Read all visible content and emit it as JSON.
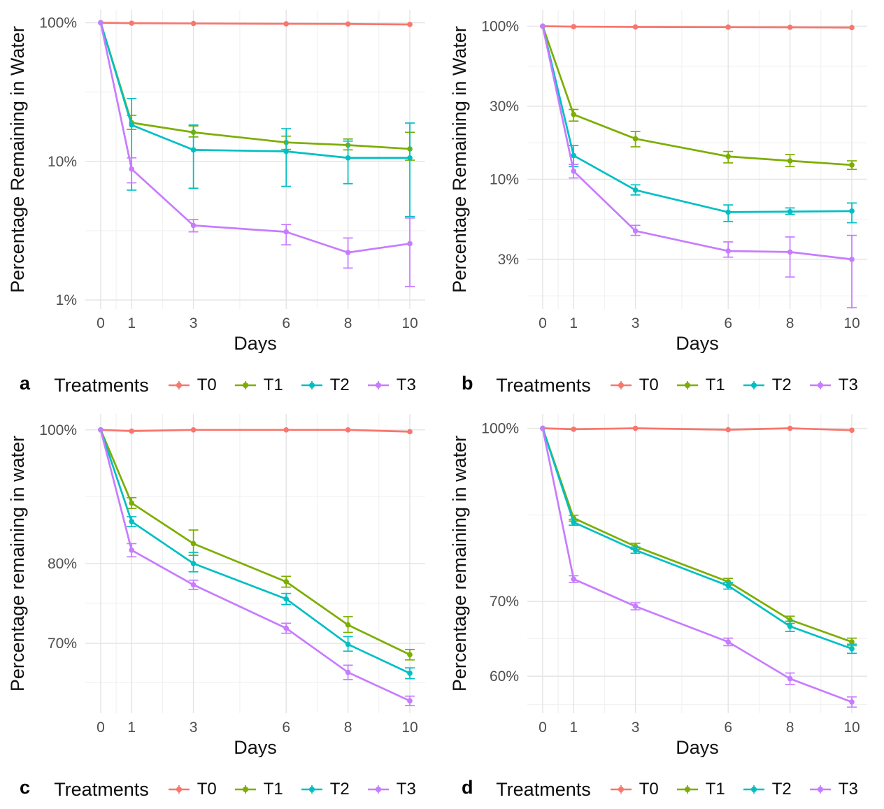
{
  "page": {
    "background": "#ffffff"
  },
  "colors": {
    "T0": "#F8766D",
    "T1": "#7CAE00",
    "T2": "#00BFC4",
    "T3": "#C77CFF",
    "grid_major": "#e4e4e4",
    "grid_minor": "#f1f1f1",
    "tick_text": "#4d4d4d",
    "title_text": "#121212"
  },
  "panels_meta": {
    "legend_title": "Treatments",
    "legend_items": [
      "T0",
      "T1",
      "T2",
      "T3"
    ],
    "x_axis_label": "Days",
    "x_tick_labels": [
      "0",
      "1",
      "3",
      "6",
      "8",
      "10"
    ],
    "x_tick_values": [
      0,
      1,
      3,
      6,
      8,
      10
    ],
    "x_minor_values": [
      0.5,
      2,
      4.5,
      7,
      9
    ]
  },
  "chart_data": [
    {
      "id": "a",
      "type": "line",
      "ylabel": "Percentage Remaining in Water",
      "xlabel": "Days",
      "x": [
        0,
        1,
        3,
        6,
        8,
        10
      ],
      "y_scale": "log10",
      "y_domain": [
        0.86,
        124
      ],
      "y_major_ticks": [
        {
          "value": 100,
          "label": "100%"
        },
        {
          "value": 10,
          "label": "10%"
        },
        {
          "value": 1,
          "label": "1%"
        }
      ],
      "y_minor_ticks": [
        31.62,
        3.162
      ],
      "grid": true,
      "legend_position": "bottom",
      "series": [
        {
          "name": "T0",
          "color_key": "T0",
          "values": [
            100,
            99.3,
            98.8,
            98.2,
            98.0,
            97.2
          ],
          "err_lo": [
            null,
            null,
            null,
            null,
            null,
            null
          ],
          "err_hi": [
            null,
            null,
            null,
            null,
            null,
            null
          ]
        },
        {
          "name": "T1",
          "color_key": "T1",
          "values": [
            100,
            19.0,
            16.2,
            13.7,
            13.1,
            12.3
          ],
          "err_lo": [
            null,
            17.0,
            15.0,
            12.2,
            12.1,
            10.2
          ],
          "err_hi": [
            null,
            21.5,
            18.0,
            15.2,
            14.5,
            16.2
          ]
        },
        {
          "name": "T2",
          "color_key": "T2",
          "values": [
            100,
            18.3,
            12.1,
            11.8,
            10.6,
            10.6
          ],
          "err_lo": [
            null,
            6.2,
            6.4,
            6.6,
            6.9,
            4.0
          ],
          "err_hi": [
            null,
            28.4,
            18.3,
            17.2,
            14.0,
            18.9
          ]
        },
        {
          "name": "T3",
          "color_key": "T3",
          "values": [
            100,
            8.8,
            3.45,
            3.1,
            2.2,
            2.55
          ],
          "err_lo": [
            null,
            7.0,
            3.1,
            2.5,
            1.7,
            1.25
          ],
          "err_hi": [
            null,
            10.6,
            3.8,
            3.5,
            2.8,
            3.9
          ]
        }
      ]
    },
    {
      "id": "b",
      "type": "line",
      "ylabel": "Percentage Remaining in Water",
      "xlabel": "Days",
      "x": [
        0,
        1,
        3,
        6,
        8,
        10
      ],
      "y_scale": "log10",
      "y_domain": [
        1.42,
        128
      ],
      "y_major_ticks": [
        {
          "value": 100,
          "label": "100%"
        },
        {
          "value": 30,
          "label": "30%"
        },
        {
          "value": 10,
          "label": "10%"
        },
        {
          "value": 3,
          "label": "3%"
        }
      ],
      "y_minor_ticks": [
        54.77,
        17.32,
        5.477,
        1.732
      ],
      "grid": true,
      "legend_position": "bottom",
      "series": [
        {
          "name": "T0",
          "color_key": "T0",
          "values": [
            100,
            99.4,
            98.9,
            98.6,
            98.4,
            98.0
          ],
          "err_lo": [
            null,
            null,
            null,
            null,
            null,
            null
          ],
          "err_hi": [
            null,
            null,
            null,
            null,
            null,
            null
          ]
        },
        {
          "name": "T1",
          "color_key": "T1",
          "values": [
            100,
            26.5,
            18.4,
            14.1,
            13.2,
            12.4
          ],
          "err_lo": [
            null,
            24.0,
            16.3,
            12.8,
            12.1,
            11.6
          ],
          "err_hi": [
            null,
            28.6,
            20.5,
            15.2,
            14.5,
            13.2
          ]
        },
        {
          "name": "T2",
          "color_key": "T2",
          "values": [
            100,
            14.3,
            8.5,
            6.1,
            6.15,
            6.2
          ],
          "err_lo": [
            null,
            12.1,
            7.9,
            5.3,
            5.9,
            5.2
          ],
          "err_hi": [
            null,
            16.6,
            9.2,
            6.8,
            6.5,
            7.0
          ]
        },
        {
          "name": "T3",
          "color_key": "T3",
          "values": [
            100,
            11.3,
            4.6,
            3.4,
            3.35,
            3.0
          ],
          "err_lo": [
            null,
            10.2,
            4.3,
            3.1,
            2.3,
            1.45
          ],
          "err_hi": [
            null,
            12.5,
            5.0,
            3.9,
            4.2,
            4.3
          ]
        }
      ]
    },
    {
      "id": "c",
      "type": "line",
      "ylabel": "Percentage remaining in water",
      "xlabel": "Days",
      "x": [
        0,
        1,
        3,
        6,
        8,
        10
      ],
      "y_scale": "log10",
      "y_domain": [
        62.3,
        102.7
      ],
      "y_major_ticks": [
        {
          "value": 100,
          "label": "100%"
        },
        {
          "value": 80,
          "label": "80%"
        },
        {
          "value": 70,
          "label": "70%"
        }
      ],
      "y_minor_ticks": [
        89.44,
        74.83,
        65.57
      ],
      "grid": true,
      "legend_position": "bottom",
      "series": [
        {
          "name": "T0",
          "color_key": "T0",
          "values": [
            100,
            99.8,
            100,
            100,
            100,
            99.7
          ],
          "err_lo": [
            null,
            null,
            null,
            null,
            null,
            null
          ],
          "err_hi": [
            null,
            null,
            null,
            null,
            null,
            null
          ]
        },
        {
          "name": "T1",
          "color_key": "T1",
          "values": [
            100,
            88.5,
            82.7,
            77.6,
            72.2,
            68.7
          ],
          "err_lo": [
            null,
            87.7,
            81.1,
            76.9,
            71.3,
            68.1
          ],
          "err_hi": [
            null,
            89.3,
            84.6,
            78.3,
            73.2,
            69.3
          ]
        },
        {
          "name": "T2",
          "color_key": "T2",
          "values": [
            100,
            85.8,
            80.0,
            75.4,
            69.9,
            66.6
          ],
          "err_lo": [
            null,
            85.1,
            78.9,
            74.7,
            69.1,
            66.0
          ],
          "err_hi": [
            null,
            86.5,
            81.5,
            76.1,
            70.8,
            67.2
          ]
        },
        {
          "name": "T3",
          "color_key": "T3",
          "values": [
            100,
            81.8,
            77.2,
            71.8,
            66.7,
            63.6
          ],
          "err_lo": [
            null,
            80.9,
            76.6,
            71.2,
            65.9,
            63.1
          ],
          "err_hi": [
            null,
            82.7,
            77.8,
            72.4,
            67.5,
            64.1
          ]
        }
      ]
    },
    {
      "id": "d",
      "type": "line",
      "ylabel": "Percentage remaining in water",
      "xlabel": "Days",
      "x": [
        0,
        1,
        3,
        6,
        8,
        10
      ],
      "y_scale": "log10",
      "y_domain": [
        55.6,
        103.0
      ],
      "y_major_ticks": [
        {
          "value": 100,
          "label": "100%"
        },
        {
          "value": 70,
          "label": "70%"
        },
        {
          "value": 60,
          "label": "60%"
        }
      ],
      "y_minor_ticks": [
        83.67,
        64.81,
        56.6
      ],
      "grid": true,
      "legend_position": "bottom",
      "series": [
        {
          "name": "T0",
          "color_key": "T0",
          "values": [
            100,
            99.8,
            100,
            99.7,
            100,
            99.6
          ],
          "err_lo": [
            null,
            null,
            null,
            null,
            null,
            null
          ],
          "err_hi": [
            null,
            null,
            null,
            null,
            null,
            null
          ]
        },
        {
          "name": "T1",
          "color_key": "T1",
          "values": [
            100,
            83.1,
            78.4,
            72.9,
            67.4,
            64.4
          ],
          "err_lo": [
            null,
            82.6,
            77.9,
            72.4,
            66.9,
            63.9
          ],
          "err_hi": [
            null,
            83.6,
            78.9,
            73.4,
            67.9,
            64.9
          ]
        },
        {
          "name": "T2",
          "color_key": "T2",
          "values": [
            100,
            82.4,
            77.8,
            72.3,
            66.5,
            63.5
          ],
          "err_lo": [
            null,
            81.9,
            77.3,
            71.8,
            65.8,
            62.9
          ],
          "err_hi": [
            null,
            82.9,
            78.3,
            72.8,
            67.2,
            64.1
          ]
        },
        {
          "name": "T3",
          "color_key": "T3",
          "values": [
            100,
            73.3,
            69.3,
            64.4,
            59.7,
            56.9
          ],
          "err_lo": [
            null,
            72.8,
            68.8,
            63.9,
            59.0,
            56.3
          ],
          "err_hi": [
            null,
            73.8,
            69.8,
            64.9,
            60.4,
            57.5
          ]
        }
      ]
    }
  ]
}
